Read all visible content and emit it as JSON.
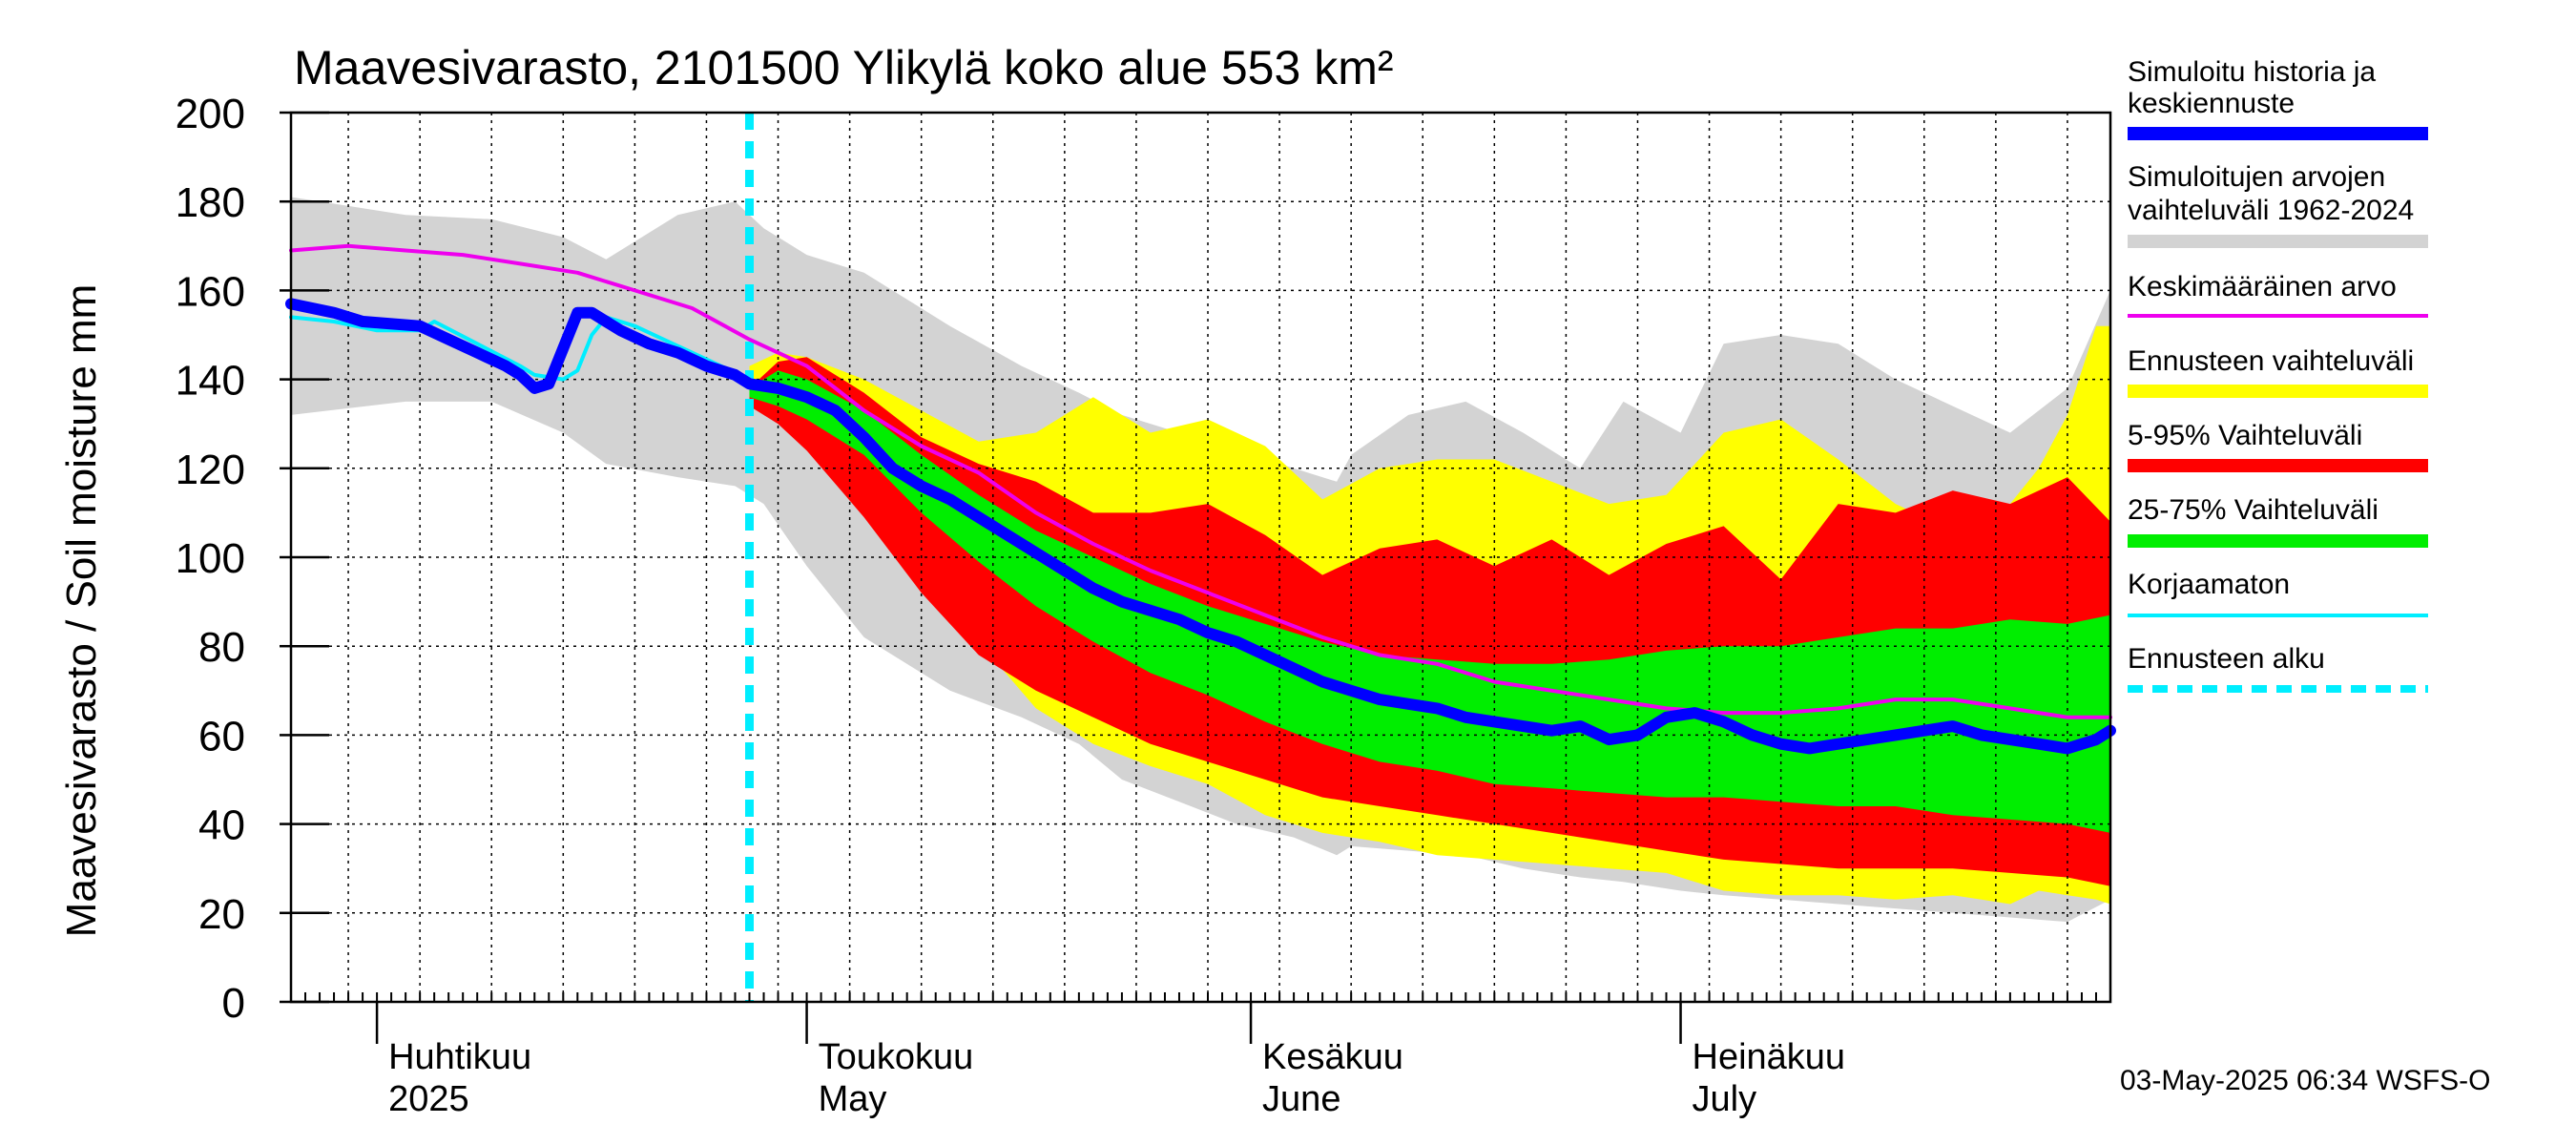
{
  "chart_data": {
    "type": "area",
    "title": "Maavesivarasto, 2101500 Ylikylä koko alue 553 km²",
    "ylabel": "Maavesivarasto / Soil moisture   mm",
    "ylim": [
      0,
      200
    ],
    "yticks": [
      0,
      20,
      40,
      60,
      80,
      100,
      120,
      140,
      160,
      180,
      200
    ],
    "x_day_range": [
      0,
      127
    ],
    "x_start_date": "2025-03-26",
    "month_ticks": [
      {
        "day": 6,
        "fi": "Huhtikuu",
        "en": "2025"
      },
      {
        "day": 36,
        "fi": "Toukokuu",
        "en": "May"
      },
      {
        "day": 67,
        "fi": "Kesäkuu",
        "en": "June"
      },
      {
        "day": 97,
        "fi": "Heinäkuu",
        "en": "July"
      }
    ],
    "forecast_start_day": 32,
    "colors": {
      "historical_range": "#d3d3d3",
      "forecast_range": "#ffff00",
      "p5_95": "#ff0000",
      "p25_75": "#00ee00",
      "median": "#0000ff",
      "mean": "#ee00ee",
      "uncorrected": "#00eeff",
      "forecast_start": "#00eeff"
    },
    "series": [
      {
        "name": "Simuloitujen arvojen vaihteluväli 1962-2024",
        "kind": "band",
        "x": [
          0,
          8,
          14,
          19,
          22,
          27,
          31,
          33,
          36,
          40,
          46,
          51,
          55,
          58,
          62,
          66,
          70,
          73,
          74,
          78,
          82,
          86,
          90,
          93,
          97,
          100,
          104,
          108,
          112,
          116,
          120,
          124,
          127
        ],
        "upper": [
          181,
          177,
          176,
          172,
          167,
          177,
          180,
          174,
          168,
          164,
          152,
          143,
          137,
          132,
          128,
          124,
          120,
          117,
          123,
          132,
          135,
          128,
          120,
          135,
          128,
          148,
          150,
          148,
          140,
          134,
          128,
          138,
          160
        ],
        "lower": [
          132,
          135,
          135,
          128,
          121,
          118,
          116,
          112,
          98,
          82,
          70,
          64,
          58,
          50,
          45,
          40,
          37,
          33,
          35,
          34,
          33,
          30,
          28,
          27,
          25,
          24,
          23,
          22,
          21,
          20,
          19,
          18,
          23
        ]
      },
      {
        "name": "Ennusteen vaihteluväli",
        "kind": "band",
        "x": [
          32,
          34,
          36,
          40,
          44,
          48,
          52,
          56,
          60,
          64,
          68,
          72,
          76,
          80,
          84,
          88,
          92,
          96,
          100,
          104,
          108,
          112,
          116,
          118,
          120,
          122,
          124,
          126,
          127
        ],
        "upper": [
          143,
          146,
          145,
          140,
          133,
          126,
          128,
          136,
          128,
          131,
          125,
          113,
          120,
          122,
          122,
          117,
          112,
          114,
          128,
          131,
          122,
          112,
          106,
          107,
          112,
          120,
          132,
          152,
          152
        ],
        "lower": [
          137,
          133,
          127,
          114,
          99,
          81,
          66,
          58,
          53,
          49,
          42,
          38,
          36,
          33,
          32,
          31,
          30,
          29,
          25,
          24,
          24,
          23,
          24,
          23,
          22,
          25,
          24,
          23,
          22
        ]
      },
      {
        "name": "5-95% Vaihteluväli",
        "kind": "band",
        "x": [
          32,
          34,
          36,
          40,
          44,
          48,
          52,
          56,
          60,
          64,
          68,
          72,
          76,
          80,
          84,
          88,
          92,
          96,
          100,
          104,
          108,
          112,
          116,
          120,
          124,
          127
        ],
        "upper": [
          138,
          144,
          145,
          137,
          127,
          121,
          117,
          110,
          110,
          112,
          105,
          96,
          102,
          104,
          98,
          104,
          96,
          103,
          107,
          95,
          112,
          110,
          115,
          112,
          118,
          108
        ],
        "lower": [
          134,
          130,
          124,
          109,
          92,
          78,
          70,
          64,
          58,
          54,
          50,
          46,
          44,
          42,
          40,
          38,
          36,
          34,
          32,
          31,
          30,
          30,
          30,
          29,
          28,
          26
        ]
      },
      {
        "name": "25-75% Vaihteluväli",
        "kind": "band",
        "x": [
          32,
          34,
          36,
          40,
          44,
          48,
          52,
          56,
          60,
          64,
          68,
          72,
          76,
          80,
          84,
          88,
          92,
          96,
          100,
          104,
          108,
          112,
          116,
          120,
          124,
          127
        ],
        "upper": [
          138,
          142,
          140,
          133,
          123,
          114,
          106,
          100,
          94,
          89,
          85,
          81,
          78,
          77,
          76,
          76,
          77,
          79,
          80,
          80,
          82,
          84,
          84,
          86,
          85,
          87
        ],
        "lower": [
          136,
          134,
          131,
          123,
          110,
          99,
          89,
          81,
          74,
          69,
          63,
          58,
          54,
          52,
          49,
          48,
          47,
          46,
          46,
          45,
          44,
          44,
          42,
          41,
          40,
          38
        ]
      },
      {
        "name": "Keskimääräinen arvo",
        "kind": "line",
        "x": [
          0,
          4,
          8,
          12,
          16,
          20,
          24,
          28,
          32,
          36,
          40,
          44,
          48,
          52,
          56,
          60,
          64,
          68,
          72,
          76,
          80,
          84,
          88,
          92,
          96,
          100,
          104,
          108,
          112,
          116,
          120,
          124,
          127
        ],
        "y": [
          169,
          170,
          169,
          168,
          166,
          164,
          160,
          156,
          149,
          143,
          133,
          125,
          119,
          110,
          103,
          97,
          92,
          87,
          82,
          78,
          76,
          72,
          70,
          68,
          66,
          65,
          65,
          66,
          68,
          68,
          66,
          64,
          64
        ]
      },
      {
        "name": "Korjaamaton",
        "kind": "line",
        "x": [
          0,
          3,
          6,
          9,
          10,
          13,
          16,
          17,
          19,
          20,
          21,
          22,
          24,
          26,
          28,
          30,
          32,
          33
        ],
        "y": [
          154,
          153,
          151,
          151,
          153,
          148,
          143,
          141,
          140,
          142,
          150,
          154,
          152,
          149,
          146,
          143,
          140,
          138
        ]
      },
      {
        "name": "Simuloitu historia ja keskiennuste",
        "kind": "line",
        "x": [
          0,
          3,
          5,
          9,
          11,
          13,
          15,
          16,
          17,
          18,
          19,
          20,
          21,
          22,
          23,
          25,
          27,
          29,
          31,
          32,
          34,
          36,
          38,
          40,
          42,
          44,
          46,
          48,
          50,
          52,
          54,
          56,
          58,
          60,
          62,
          64,
          66,
          68,
          70,
          72,
          74,
          76,
          78,
          80,
          82,
          84,
          86,
          88,
          90,
          92,
          94,
          96,
          98,
          100,
          102,
          104,
          106,
          108,
          110,
          112,
          114,
          116,
          118,
          120,
          122,
          124,
          126,
          127
        ],
        "y": [
          157,
          155,
          153,
          152,
          149,
          146,
          143,
          141,
          138,
          139,
          147,
          155,
          155,
          153,
          151,
          148,
          146,
          143,
          141,
          139,
          138,
          136,
          133,
          127,
          120,
          116,
          113,
          109,
          105,
          101,
          97,
          93,
          90,
          88,
          86,
          83,
          81,
          78,
          75,
          72,
          70,
          68,
          67,
          66,
          64,
          63,
          62,
          61,
          62,
          59,
          60,
          64,
          65,
          63,
          60,
          58,
          57,
          58,
          59,
          60,
          61,
          62,
          60,
          59,
          58,
          57,
          59,
          61
        ]
      }
    ],
    "legend": [
      {
        "label": "Simuloitu historia ja keskiennuste",
        "color": "#0000ff",
        "style": "thick"
      },
      {
        "label": "Simuloitujen arvojen vaihteluväli 1962-2024",
        "color": "#d3d3d3",
        "style": "thick"
      },
      {
        "label": "Keskimääräinen arvo",
        "color": "#ee00ee",
        "style": "thin"
      },
      {
        "label": "Ennusteen vaihteluväli",
        "color": "#ffff00",
        "style": "thick"
      },
      {
        "label": "5-95% Vaihteluväli",
        "color": "#ff0000",
        "style": "thick"
      },
      {
        "label": "25-75% Vaihteluväli",
        "color": "#00ee00",
        "style": "thick"
      },
      {
        "label": "Korjaamaton",
        "color": "#00eeff",
        "style": "thin"
      },
      {
        "label": "Ennusteen alku",
        "color": "#00eeff",
        "style": "dashed"
      }
    ],
    "legend_placement": "right"
  },
  "legend_text": {
    "l1a": "Simuloitu historia ja",
    "l1b": "keskiennuste",
    "l2a": "Simuloitujen arvojen",
    "l2b": "vaihteluväli 1962-2024",
    "l3": "Keskimääräinen arvo",
    "l4": "Ennusteen vaihteluväli",
    "l5": "5-95% Vaihteluväli",
    "l6": "25-75% Vaihteluväli",
    "l7": "Korjaamaton",
    "l8": "Ennusteen alku"
  },
  "footer": "03-May-2025 06:34 WSFS-O"
}
